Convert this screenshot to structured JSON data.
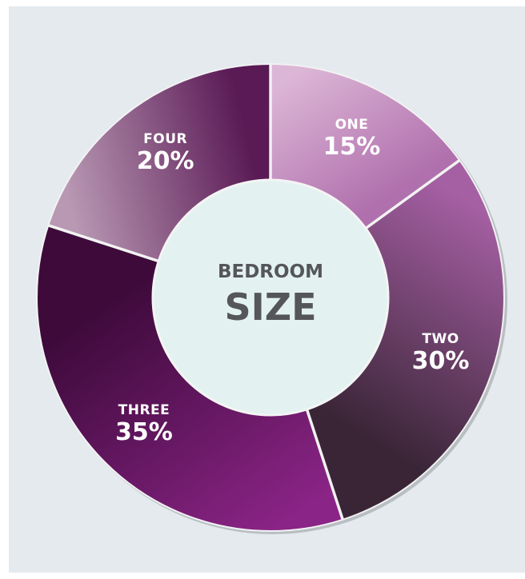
{
  "chart_data": {
    "type": "pie",
    "title_line1": "BEDROOM",
    "title_line2": "SIZE",
    "slices": [
      {
        "label": "ONE",
        "value": 15,
        "value_label": "15%",
        "color_light": "#dcb6d6",
        "color_dark": "#b070ad"
      },
      {
        "label": "TWO",
        "value": 30,
        "value_label": "30%",
        "color_light": "#a55fa3",
        "color_dark": "#3a2537"
      },
      {
        "label": "THREE",
        "value": 35,
        "value_label": "35%",
        "color_light": "#8a2486",
        "color_dark": "#3d0a3a"
      },
      {
        "label": "FOUR",
        "value": 20,
        "value_label": "20%",
        "color_light": "#b898b3",
        "color_dark": "#5a1a55"
      }
    ],
    "start_angle_deg": 0,
    "direction": "clockwise",
    "legend": "none",
    "background_color": "#e4eaee",
    "center_color": "#e3f1f1",
    "separator_color": "#f2f2f2"
  }
}
